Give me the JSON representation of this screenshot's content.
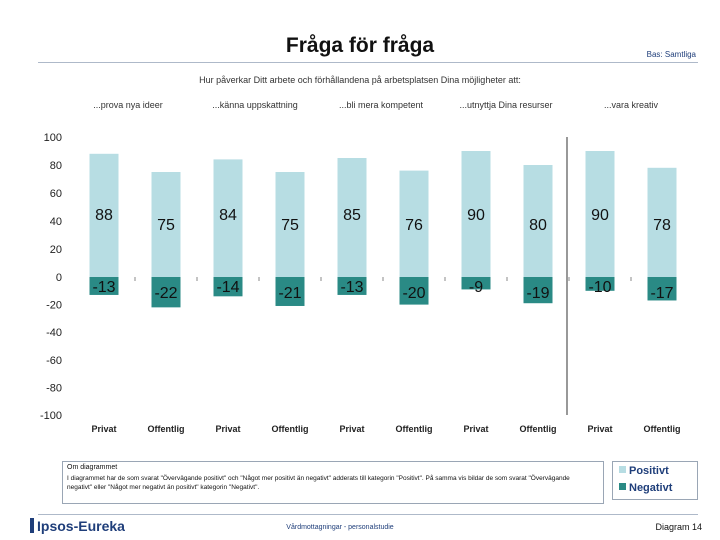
{
  "slide": {
    "title": "Fråga för fråga",
    "base_label": "Bas: Samtliga",
    "question": "Hur påverkar Ditt arbete och förhållandena på arbetsplatsen Dina möjligheter att:",
    "note_title": "Om diagrammet",
    "note_text": "I diagrammet har de som svarat \"Övervägande positivt\" och \"Något mer positivt än negativt\" adderats till kategorin \"Positivt\". På samma vis bildar de som svarat \"Övervägande negativt\" eller \"Något mer negativt än positivt\" kategorin \"Negativt\".",
    "logo_text": "Ipsos-Eureka",
    "footer_center": "Vårdmottagningar - personalstudie",
    "page_number": "Diagram 14"
  },
  "colors": {
    "positive": "#b7dde3",
    "negative": "#2a8a85",
    "axis": "#888888",
    "brand": "#1f3e7a"
  },
  "chart_data": {
    "type": "bar",
    "groups": [
      "...prova nya ideer",
      "...känna uppskattning",
      "...bli mera kompetent",
      "...utnyttja Dina resurser",
      "...vara kreativ"
    ],
    "categories": [
      "Privat",
      "Offentlig",
      "Privat",
      "Offentlig",
      "Privat",
      "Offentlig",
      "Privat",
      "Offentlig",
      "Privat",
      "Offentlig"
    ],
    "series": [
      {
        "name": "Positivt",
        "values": [
          88,
          75,
          84,
          75,
          85,
          76,
          90,
          80,
          90,
          78
        ]
      },
      {
        "name": "Negativt",
        "values": [
          -13,
          -22,
          -14,
          -21,
          -13,
          -20,
          -9,
          -19,
          -10,
          -17
        ]
      }
    ],
    "y_ticks": [
      "100",
      "80",
      "60",
      "40",
      "20",
      "0",
      "-20",
      "-40",
      "-60",
      "-80",
      "-100"
    ],
    "ylim": [
      -100,
      100
    ],
    "grid": false,
    "legend": "bottom-right"
  }
}
